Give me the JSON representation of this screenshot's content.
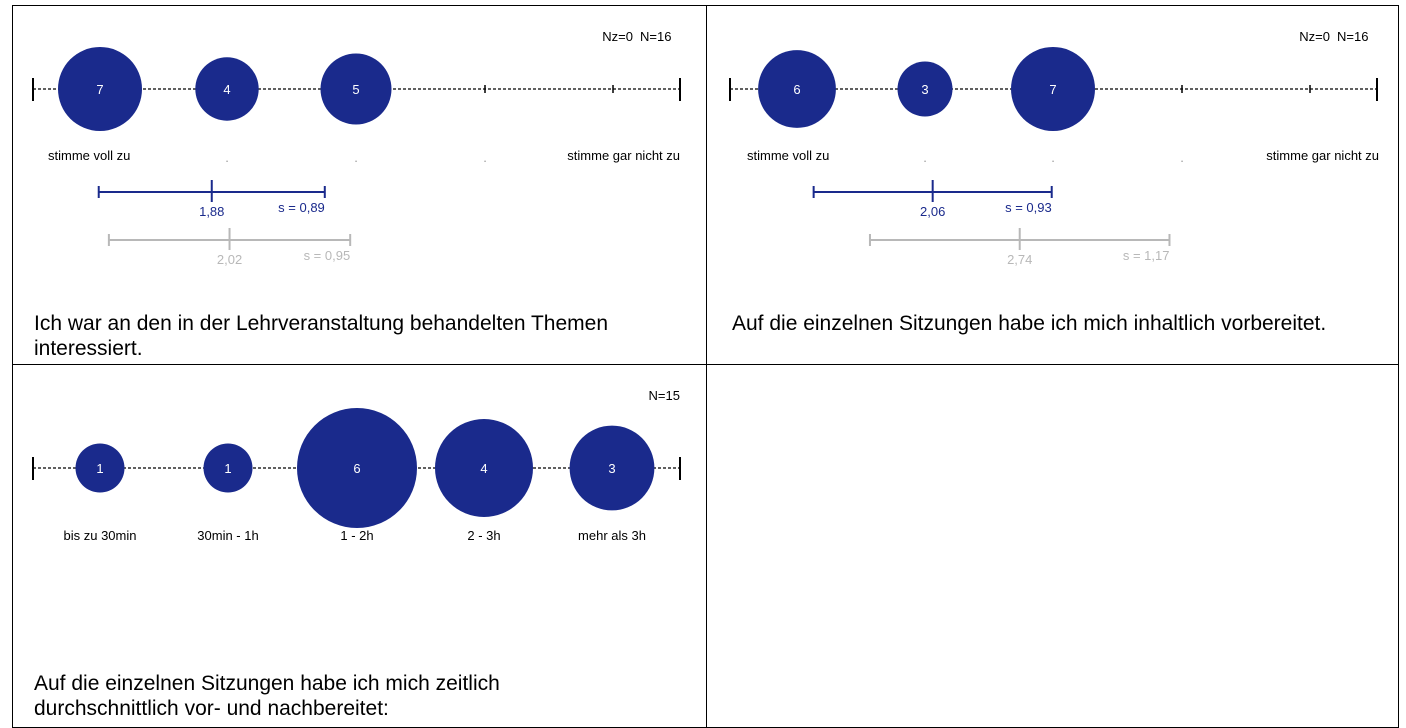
{
  "colors": {
    "accent": "#1a2a8c",
    "compare": "#b8b8b8",
    "line": "#000000"
  },
  "chart_data": [
    {
      "type": "scatter",
      "nz_label": "Nz=0",
      "n_label": "N=16",
      "scale_labels": [
        "stimme voll zu",
        ".",
        ".",
        ".",
        "stimme gar nicht zu"
      ],
      "counts": [
        7,
        4,
        5,
        0,
        0
      ],
      "count_labels": [
        "7",
        "4",
        "5",
        "",
        ""
      ],
      "mean": 1.88,
      "sd": 0.89,
      "mean_label": "1,88",
      "sd_label": "s = 0,89",
      "compare_mean": 2.02,
      "compare_sd": 0.95,
      "compare_mean_label": "2,02",
      "compare_sd_label": "s = 0,95",
      "question": "Ich war an den in der Lehrveranstaltung behandelten Themen interessiert."
    },
    {
      "type": "scatter",
      "nz_label": "Nz=0",
      "n_label": "N=16",
      "scale_labels": [
        "stimme voll zu",
        ".",
        ".",
        ".",
        "stimme gar nicht zu"
      ],
      "counts": [
        6,
        3,
        7,
        0,
        0
      ],
      "count_labels": [
        "6",
        "3",
        "7",
        "",
        ""
      ],
      "mean": 2.06,
      "sd": 0.93,
      "mean_label": "2,06",
      "sd_label": "s = 0,93",
      "compare_mean": 2.74,
      "compare_sd": 1.17,
      "compare_mean_label": "2,74",
      "compare_sd_label": "s = 1,17",
      "question": "Auf die einzelnen Sitzungen habe ich mich inhaltlich vorbereitet."
    },
    {
      "type": "scatter",
      "nz_label": "",
      "n_label": "N=15",
      "scale_labels": [
        "bis zu 30min",
        "30min - 1h",
        "1 - 2h",
        "2 - 3h",
        "mehr als 3h"
      ],
      "counts": [
        1,
        1,
        6,
        4,
        3
      ],
      "count_labels": [
        "1",
        "1",
        "6",
        "4",
        "3"
      ],
      "question": "Auf die einzelnen Sitzungen habe ich mich zeitlich durchschnittlich vor- und nachbereitet:"
    }
  ]
}
